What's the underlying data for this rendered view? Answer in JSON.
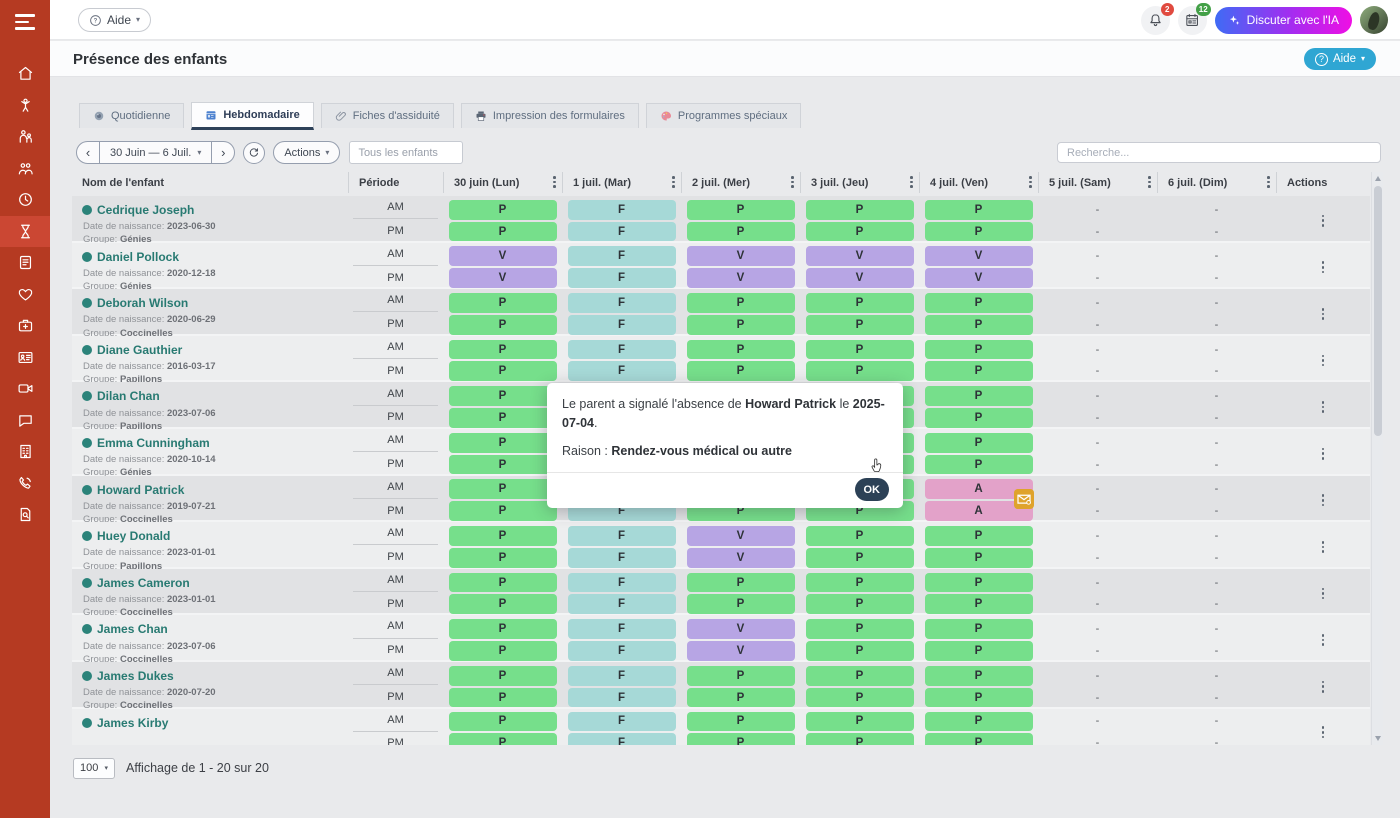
{
  "topbar": {
    "help_button": "Aide",
    "notifications_badge": "2",
    "inbox_badge": "12",
    "ai_chat_button": "Discuter avec l'IA"
  },
  "page_header": {
    "title": "Présence des enfants",
    "help_button": "Aide"
  },
  "sidebar": {
    "items": [
      {
        "icon": "home",
        "active": false
      },
      {
        "icon": "child",
        "active": false
      },
      {
        "icon": "family",
        "active": false
      },
      {
        "icon": "people",
        "active": false
      },
      {
        "icon": "clock",
        "active": false
      },
      {
        "icon": "hourglass",
        "active": true
      },
      {
        "icon": "report-card",
        "active": false
      },
      {
        "icon": "heart",
        "active": false
      },
      {
        "icon": "first-aid",
        "active": false
      },
      {
        "icon": "id-card",
        "active": false
      },
      {
        "icon": "video-camera",
        "active": false
      },
      {
        "icon": "chat-bubble",
        "active": false
      },
      {
        "icon": "building",
        "active": false
      },
      {
        "icon": "phone",
        "active": false
      },
      {
        "icon": "attendance-search",
        "active": false
      }
    ]
  },
  "tabs": [
    {
      "label": "Quotidienne",
      "icon": "daily",
      "active": false
    },
    {
      "label": "Hebdomadaire",
      "icon": "weekly",
      "active": true
    },
    {
      "label": "Fiches d'assiduité",
      "icon": "paperclip",
      "active": false
    },
    {
      "label": "Impression des formulaires",
      "icon": "printer",
      "active": false
    },
    {
      "label": "Programmes spéciaux",
      "icon": "palette",
      "active": false
    }
  ],
  "toolbar": {
    "date_range": "30 Juin — 6 Juil.",
    "actions_button": "Actions",
    "filter_placeholder": "Tous les enfants",
    "search_placeholder": "Recherche..."
  },
  "table": {
    "columns": [
      "Nom de l'enfant",
      "Période",
      "30 juin (Lun)",
      "1 juil. (Mar)",
      "2 juil. (Mer)",
      "3 juil. (Jeu)",
      "4 juil. (Ven)",
      "5 juil. (Sam)",
      "6 juil. (Dim)",
      "Actions"
    ],
    "dob_label": "Date de naissance:",
    "group_label": "Groupe:",
    "periods": [
      "AM",
      "PM"
    ],
    "rows": [
      {
        "name": "Cedrique Joseph",
        "dob": "2023-06-30",
        "group": "Génies",
        "am": [
          "P",
          "F",
          "P",
          "P",
          "P",
          "-",
          "-"
        ],
        "pm": [
          "P",
          "F",
          "P",
          "P",
          "P",
          "-",
          "-"
        ]
      },
      {
        "name": "Daniel Pollock",
        "dob": "2020-12-18",
        "group": "Génies",
        "am": [
          "V",
          "F",
          "V",
          "V",
          "V",
          "-",
          "-"
        ],
        "pm": [
          "V",
          "F",
          "V",
          "V",
          "V",
          "-",
          "-"
        ]
      },
      {
        "name": "Deborah Wilson",
        "dob": "2020-06-29",
        "group": "Coccinelles",
        "am": [
          "P",
          "F",
          "P",
          "P",
          "P",
          "-",
          "-"
        ],
        "pm": [
          "P",
          "F",
          "P",
          "P",
          "P",
          "-",
          "-"
        ]
      },
      {
        "name": "Diane Gauthier",
        "dob": "2016-03-17",
        "group": "Papillons",
        "am": [
          "P",
          "F",
          "P",
          "P",
          "P",
          "-",
          "-"
        ],
        "pm": [
          "P",
          "F",
          "P",
          "P",
          "P",
          "-",
          "-"
        ]
      },
      {
        "name": "Dilan Chan",
        "dob": "2023-07-06",
        "group": "Papillons",
        "am": [
          "P",
          "F",
          "P",
          "P",
          "P",
          "-",
          "-"
        ],
        "pm": [
          "P",
          "F",
          "P",
          "P",
          "P",
          "-",
          "-"
        ]
      },
      {
        "name": "Emma Cunningham",
        "dob": "2020-10-14",
        "group": "Génies",
        "am": [
          "P",
          "F",
          "P",
          "P",
          "P",
          "-",
          "-"
        ],
        "pm": [
          "P",
          "F",
          "P",
          "P",
          "P",
          "-",
          "-"
        ]
      },
      {
        "name": "Howard Patrick",
        "dob": "2019-07-21",
        "group": "Coccinelles",
        "am": [
          "P",
          "F",
          "P",
          "P",
          "A",
          "-",
          "-"
        ],
        "pm": [
          "P",
          "F",
          "P",
          "P",
          "A",
          "-",
          "-"
        ],
        "note_icon": true
      },
      {
        "name": "Huey Donald",
        "dob": "2023-01-01",
        "group": "Papillons",
        "am": [
          "P",
          "F",
          "V",
          "P",
          "P",
          "-",
          "-"
        ],
        "pm": [
          "P",
          "F",
          "V",
          "P",
          "P",
          "-",
          "-"
        ]
      },
      {
        "name": "James Cameron",
        "dob": "2023-01-01",
        "group": "Coccinelles",
        "am": [
          "P",
          "F",
          "P",
          "P",
          "P",
          "-",
          "-"
        ],
        "pm": [
          "P",
          "F",
          "P",
          "P",
          "P",
          "-",
          "-"
        ]
      },
      {
        "name": "James Chan",
        "dob": "2023-07-06",
        "group": "Coccinelles",
        "am": [
          "P",
          "F",
          "V",
          "P",
          "P",
          "-",
          "-"
        ],
        "pm": [
          "P",
          "F",
          "V",
          "P",
          "P",
          "-",
          "-"
        ]
      },
      {
        "name": "James Dukes",
        "dob": "2020-07-20",
        "group": "Coccinelles",
        "am": [
          "P",
          "F",
          "P",
          "P",
          "P",
          "-",
          "-"
        ],
        "pm": [
          "P",
          "F",
          "P",
          "P",
          "P",
          "-",
          "-"
        ]
      },
      {
        "name": "James Kirby",
        "dob": "",
        "group": "",
        "am": [
          "P",
          "F",
          "P",
          "P",
          "P",
          "-",
          "-"
        ],
        "pm": [
          "P",
          "F",
          "P",
          "P",
          "P",
          "-",
          "-"
        ]
      }
    ]
  },
  "status_colors": {
    "P": "#76df8b",
    "F": "#a6d9d7",
    "V": "#b7a5e4",
    "A": "#e3a2c9"
  },
  "accent_colors": {
    "sidebar": "#b53a22",
    "name_teal": "#287a72",
    "help_cyan": "#2fa6d3",
    "ok_navy": "#2c4156"
  },
  "modal": {
    "text_prefix": "Le parent a signalé l'absence de ",
    "child_name": "Howard Patrick",
    "text_middle": " le ",
    "date": "2025-07-04",
    "text_suffix": ".",
    "reason_label": "Raison : ",
    "reason_value": "Rendez-vous médical ou autre",
    "ok_button": "OK"
  },
  "pagination": {
    "page_size": "100",
    "summary": "Affichage de 1 - 20 sur 20"
  }
}
